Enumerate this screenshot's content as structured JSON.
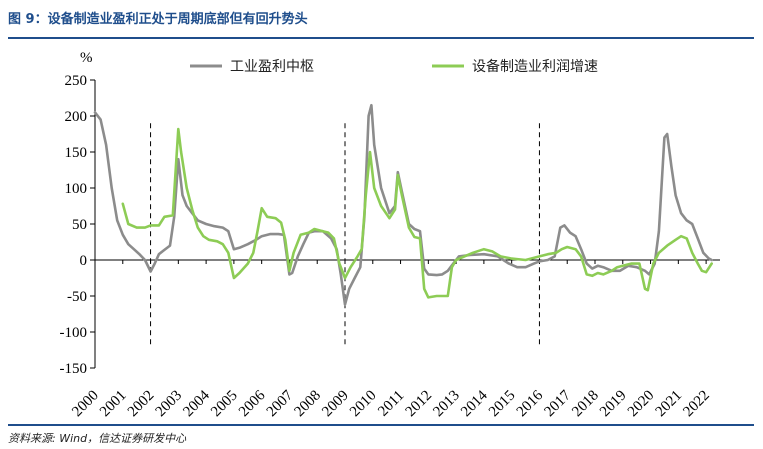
{
  "figure": {
    "title": "图 9：设备制造业盈利正处于周期底部但有回升势头",
    "source": "资料来源: Wind，信达证券研发中心"
  },
  "chart_data": {
    "type": "line",
    "ylabel": "%",
    "ylim": [
      -150,
      250
    ],
    "yticks": [
      -150,
      -100,
      -50,
      0,
      50,
      100,
      150,
      200,
      250
    ],
    "x_tick_labels": [
      "2000",
      "2001",
      "2002",
      "2003",
      "2004",
      "2005",
      "2006",
      "2007",
      "2008",
      "2009",
      "2010",
      "2011",
      "2012",
      "2013",
      "2014",
      "2015",
      "2016",
      "2017",
      "2018",
      "2019",
      "2020",
      "2021",
      "2022"
    ],
    "xlim": [
      2000,
      2022.5
    ],
    "legend_position": "top",
    "grid": false,
    "vertical_markers": [
      2002.0,
      2009.0,
      2016.0
    ],
    "series": [
      {
        "name": "工业盈利中枢",
        "color": "#8c8c8c",
        "points": [
          [
            2000.0,
            205
          ],
          [
            2000.2,
            195
          ],
          [
            2000.4,
            160
          ],
          [
            2000.6,
            100
          ],
          [
            2000.8,
            55
          ],
          [
            2001.0,
            35
          ],
          [
            2001.2,
            22
          ],
          [
            2001.4,
            15
          ],
          [
            2001.6,
            8
          ],
          [
            2001.8,
            0
          ],
          [
            2002.0,
            -16
          ],
          [
            2002.15,
            -5
          ],
          [
            2002.3,
            8
          ],
          [
            2002.5,
            14
          ],
          [
            2002.7,
            20
          ],
          [
            2002.85,
            60
          ],
          [
            2003.0,
            140
          ],
          [
            2003.15,
            90
          ],
          [
            2003.3,
            75
          ],
          [
            2003.5,
            65
          ],
          [
            2003.7,
            55
          ],
          [
            2004.0,
            50
          ],
          [
            2004.3,
            47
          ],
          [
            2004.6,
            45
          ],
          [
            2004.8,
            40
          ],
          [
            2005.0,
            15
          ],
          [
            2005.2,
            17
          ],
          [
            2005.5,
            22
          ],
          [
            2005.8,
            28
          ],
          [
            2006.0,
            33
          ],
          [
            2006.3,
            36
          ],
          [
            2006.6,
            36
          ],
          [
            2006.8,
            35
          ],
          [
            2007.0,
            -20
          ],
          [
            2007.1,
            -18
          ],
          [
            2007.3,
            5
          ],
          [
            2007.5,
            22
          ],
          [
            2007.7,
            38
          ],
          [
            2007.9,
            40
          ],
          [
            2008.2,
            40
          ],
          [
            2008.5,
            30
          ],
          [
            2008.7,
            15
          ],
          [
            2008.85,
            -20
          ],
          [
            2009.0,
            -62
          ],
          [
            2009.15,
            -40
          ],
          [
            2009.35,
            -25
          ],
          [
            2009.55,
            -10
          ],
          [
            2009.7,
            60
          ],
          [
            2009.85,
            200
          ],
          [
            2009.95,
            215
          ],
          [
            2010.05,
            160
          ],
          [
            2010.3,
            100
          ],
          [
            2010.6,
            65
          ],
          [
            2010.8,
            75
          ],
          [
            2010.9,
            122
          ],
          [
            2011.05,
            95
          ],
          [
            2011.3,
            50
          ],
          [
            2011.5,
            43
          ],
          [
            2011.7,
            40
          ],
          [
            2011.85,
            -12
          ],
          [
            2012.0,
            -20
          ],
          [
            2012.3,
            -21
          ],
          [
            2012.5,
            -20
          ],
          [
            2012.7,
            -15
          ],
          [
            2012.9,
            -5
          ],
          [
            2013.1,
            5
          ],
          [
            2013.5,
            7
          ],
          [
            2014.0,
            8
          ],
          [
            2014.5,
            5
          ],
          [
            2014.9,
            -5
          ],
          [
            2015.2,
            -10
          ],
          [
            2015.5,
            -10
          ],
          [
            2015.8,
            -5
          ],
          [
            2016.0,
            -2
          ],
          [
            2016.3,
            0
          ],
          [
            2016.55,
            5
          ],
          [
            2016.75,
            45
          ],
          [
            2016.9,
            48
          ],
          [
            2017.1,
            38
          ],
          [
            2017.3,
            33
          ],
          [
            2017.5,
            15
          ],
          [
            2017.7,
            -5
          ],
          [
            2017.9,
            -12
          ],
          [
            2018.1,
            -8
          ],
          [
            2018.3,
            -10
          ],
          [
            2018.6,
            -15
          ],
          [
            2018.9,
            -15
          ],
          [
            2019.2,
            -8
          ],
          [
            2019.5,
            -10
          ],
          [
            2019.8,
            -15
          ],
          [
            2019.95,
            -20
          ],
          [
            2020.15,
            -5
          ],
          [
            2020.3,
            40
          ],
          [
            2020.5,
            170
          ],
          [
            2020.6,
            175
          ],
          [
            2020.75,
            130
          ],
          [
            2020.9,
            90
          ],
          [
            2021.1,
            65
          ],
          [
            2021.3,
            55
          ],
          [
            2021.5,
            50
          ],
          [
            2021.7,
            30
          ],
          [
            2021.9,
            10
          ],
          [
            2022.1,
            2
          ],
          [
            2022.2,
            0
          ]
        ]
      },
      {
        "name": "设备制造业利润增速",
        "color": "#8dcc55",
        "points": [
          [
            2001.0,
            78
          ],
          [
            2001.2,
            50
          ],
          [
            2001.5,
            45
          ],
          [
            2001.8,
            45
          ],
          [
            2002.0,
            48
          ],
          [
            2002.3,
            48
          ],
          [
            2002.5,
            60
          ],
          [
            2002.8,
            62
          ],
          [
            2003.0,
            182
          ],
          [
            2003.1,
            150
          ],
          [
            2003.3,
            100
          ],
          [
            2003.5,
            70
          ],
          [
            2003.7,
            45
          ],
          [
            2003.9,
            33
          ],
          [
            2004.1,
            28
          ],
          [
            2004.4,
            26
          ],
          [
            2004.6,
            22
          ],
          [
            2004.8,
            10
          ],
          [
            2005.0,
            -25
          ],
          [
            2005.2,
            -18
          ],
          [
            2005.5,
            -5
          ],
          [
            2005.7,
            10
          ],
          [
            2005.85,
            40
          ],
          [
            2006.0,
            72
          ],
          [
            2006.2,
            60
          ],
          [
            2006.5,
            58
          ],
          [
            2006.7,
            52
          ],
          [
            2006.85,
            28
          ],
          [
            2007.0,
            -15
          ],
          [
            2007.15,
            10
          ],
          [
            2007.4,
            35
          ],
          [
            2007.7,
            38
          ],
          [
            2007.9,
            43
          ],
          [
            2008.2,
            40
          ],
          [
            2008.4,
            38
          ],
          [
            2008.6,
            30
          ],
          [
            2008.8,
            -5
          ],
          [
            2009.0,
            -25
          ],
          [
            2009.2,
            -10
          ],
          [
            2009.45,
            5
          ],
          [
            2009.6,
            15
          ],
          [
            2009.75,
            90
          ],
          [
            2009.9,
            150
          ],
          [
            2010.05,
            100
          ],
          [
            2010.3,
            75
          ],
          [
            2010.6,
            58
          ],
          [
            2010.8,
            70
          ],
          [
            2010.9,
            118
          ],
          [
            2011.05,
            90
          ],
          [
            2011.3,
            45
          ],
          [
            2011.5,
            32
          ],
          [
            2011.7,
            30
          ],
          [
            2011.85,
            -40
          ],
          [
            2012.0,
            -52
          ],
          [
            2012.3,
            -50
          ],
          [
            2012.5,
            -50
          ],
          [
            2012.7,
            -50
          ],
          [
            2012.85,
            -10
          ],
          [
            2013.0,
            0
          ],
          [
            2013.3,
            5
          ],
          [
            2013.6,
            10
          ],
          [
            2014.0,
            15
          ],
          [
            2014.3,
            12
          ],
          [
            2014.6,
            5
          ],
          [
            2015.0,
            2
          ],
          [
            2015.5,
            0
          ],
          [
            2016.0,
            5
          ],
          [
            2016.3,
            8
          ],
          [
            2016.6,
            10
          ],
          [
            2016.8,
            15
          ],
          [
            2017.0,
            18
          ],
          [
            2017.3,
            15
          ],
          [
            2017.5,
            5
          ],
          [
            2017.7,
            -20
          ],
          [
            2017.9,
            -22
          ],
          [
            2018.1,
            -18
          ],
          [
            2018.3,
            -20
          ],
          [
            2018.6,
            -15
          ],
          [
            2018.8,
            -10
          ],
          [
            2019.0,
            -8
          ],
          [
            2019.3,
            -5
          ],
          [
            2019.6,
            -5
          ],
          [
            2019.8,
            -40
          ],
          [
            2019.9,
            -42
          ],
          [
            2020.1,
            -5
          ],
          [
            2020.3,
            10
          ],
          [
            2020.6,
            20
          ],
          [
            2020.9,
            28
          ],
          [
            2021.1,
            33
          ],
          [
            2021.3,
            30
          ],
          [
            2021.5,
            10
          ],
          [
            2021.7,
            -5
          ],
          [
            2021.85,
            -15
          ],
          [
            2022.0,
            -17
          ],
          [
            2022.2,
            -5
          ]
        ]
      }
    ]
  }
}
